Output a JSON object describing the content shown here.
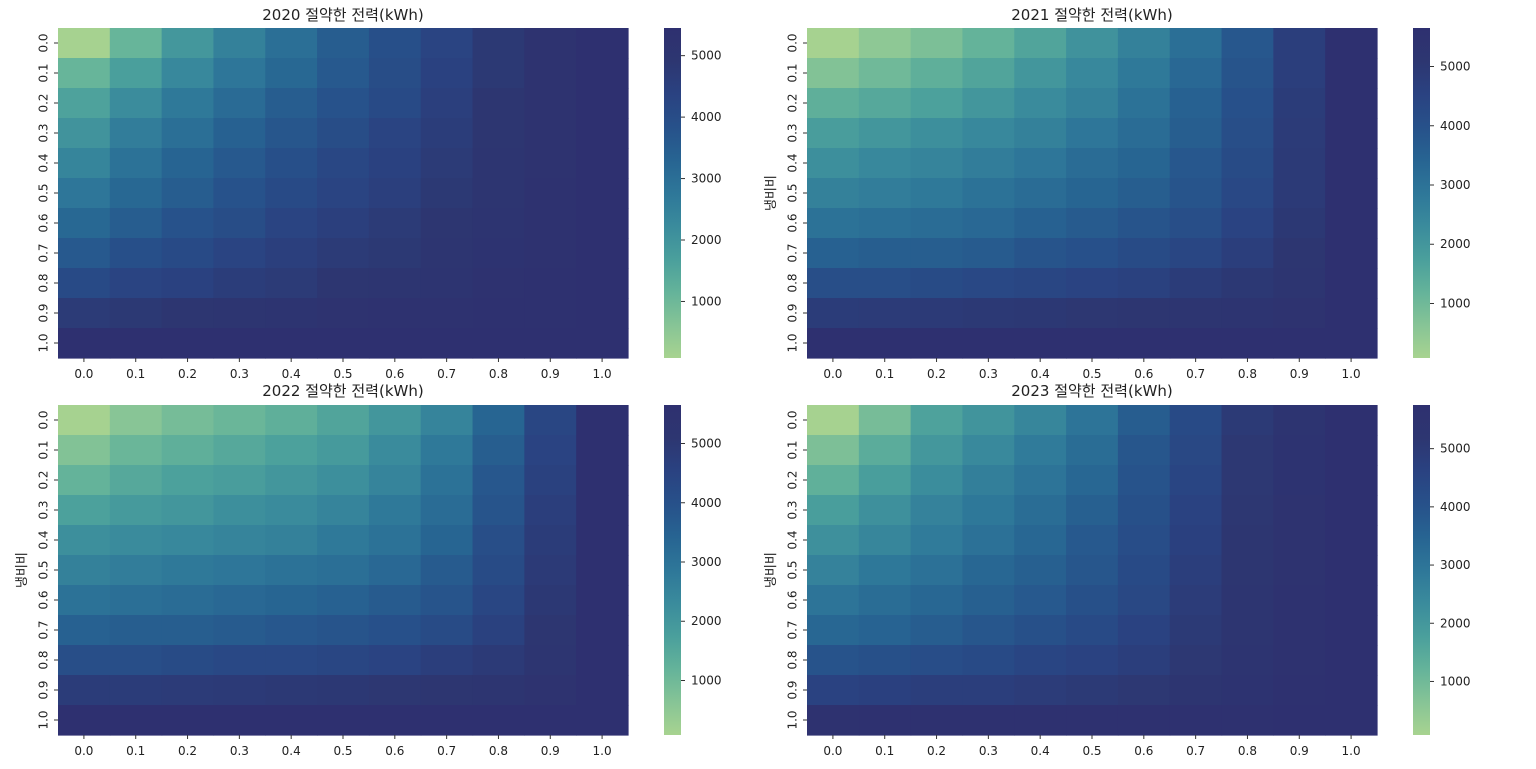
{
  "chart_data": [
    {
      "type": "heatmap",
      "title": "2020 절약한 전력(kWh)",
      "xlabel": "",
      "ylabel": "",
      "x": [
        "0.0",
        "0.1",
        "0.2",
        "0.3",
        "0.4",
        "0.5",
        "0.6",
        "0.7",
        "0.8",
        "0.9",
        "1.0"
      ],
      "y": [
        "0.0",
        "0.1",
        "0.2",
        "0.3",
        "0.4",
        "0.5",
        "0.6",
        "0.7",
        "0.8",
        "0.9",
        "1.0"
      ],
      "colorbar_ticks": [
        1000,
        2000,
        3000,
        4000,
        5000
      ],
      "value_range": [
        80,
        5450
      ],
      "values": [
        [
          100,
          1100,
          1900,
          2500,
          3000,
          3500,
          3900,
          4300,
          4800,
          5200,
          5450
        ],
        [
          1100,
          1700,
          2300,
          2800,
          3200,
          3600,
          4000,
          4400,
          4800,
          5200,
          5450
        ],
        [
          1600,
          2200,
          2700,
          3100,
          3500,
          3800,
          4100,
          4500,
          4900,
          5200,
          5450
        ],
        [
          2000,
          2600,
          3000,
          3400,
          3700,
          4000,
          4300,
          4600,
          4900,
          5200,
          5450
        ],
        [
          2400,
          2900,
          3300,
          3600,
          3900,
          4200,
          4400,
          4700,
          5000,
          5200,
          5450
        ],
        [
          2800,
          3200,
          3500,
          3800,
          4100,
          4300,
          4500,
          4800,
          5000,
          5250,
          5450
        ],
        [
          3200,
          3500,
          3800,
          4000,
          4300,
          4500,
          4700,
          4900,
          5100,
          5250,
          5450
        ],
        [
          3600,
          3900,
          4100,
          4300,
          4500,
          4700,
          4800,
          5000,
          5150,
          5300,
          5450
        ],
        [
          4100,
          4300,
          4400,
          4600,
          4700,
          4900,
          5000,
          5100,
          5250,
          5350,
          5450
        ],
        [
          4700,
          4800,
          4900,
          5000,
          5100,
          5200,
          5250,
          5300,
          5350,
          5400,
          5450
        ],
        [
          5450,
          5450,
          5450,
          5450,
          5450,
          5450,
          5450,
          5450,
          5450,
          5450,
          5450
        ]
      ]
    },
    {
      "type": "heatmap",
      "title": "2021 절약한 전력(kWh)",
      "xlabel": "",
      "ylabel": "냉비비",
      "x": [
        "0.0",
        "0.1",
        "0.2",
        "0.3",
        "0.4",
        "0.5",
        "0.6",
        "0.7",
        "0.8",
        "0.9",
        "1.0"
      ],
      "y": [
        "0.0",
        "0.1",
        "0.2",
        "0.3",
        "0.4",
        "0.5",
        "0.6",
        "0.7",
        "0.8",
        "0.9",
        "1.0"
      ],
      "colorbar_ticks": [
        1000,
        2000,
        3000,
        4000,
        5000
      ],
      "value_range": [
        80,
        5650
      ],
      "values": [
        [
          100,
          500,
          800,
          1200,
          1600,
          2100,
          2600,
          3100,
          3800,
          4700,
          5650
        ],
        [
          700,
          1000,
          1300,
          1600,
          2000,
          2400,
          2800,
          3300,
          3900,
          4700,
          5650
        ],
        [
          1300,
          1500,
          1700,
          2000,
          2300,
          2600,
          3000,
          3500,
          4000,
          4800,
          5650
        ],
        [
          1800,
          2000,
          2200,
          2400,
          2600,
          2900,
          3200,
          3600,
          4100,
          4850,
          5650
        ],
        [
          2200,
          2400,
          2500,
          2700,
          2900,
          3200,
          3400,
          3800,
          4200,
          4900,
          5650
        ],
        [
          2600,
          2700,
          2800,
          3000,
          3200,
          3400,
          3600,
          3900,
          4300,
          4900,
          5650
        ],
        [
          3000,
          3100,
          3200,
          3300,
          3500,
          3700,
          3900,
          4100,
          4500,
          5000,
          5650
        ],
        [
          3500,
          3600,
          3600,
          3700,
          3900,
          4000,
          4200,
          4400,
          4700,
          5100,
          5650
        ],
        [
          4100,
          4100,
          4200,
          4300,
          4400,
          4500,
          4600,
          4800,
          5000,
          5200,
          5650
        ],
        [
          4800,
          4850,
          4900,
          4950,
          5000,
          5050,
          5100,
          5200,
          5300,
          5400,
          5650
        ],
        [
          5650,
          5650,
          5650,
          5650,
          5650,
          5650,
          5650,
          5650,
          5650,
          5650,
          5650
        ]
      ]
    },
    {
      "type": "heatmap",
      "title": "2022 절약한 전력(kWh)",
      "xlabel": "",
      "ylabel": "냉비비",
      "x": [
        "0.0",
        "0.1",
        "0.2",
        "0.3",
        "0.4",
        "0.5",
        "0.6",
        "0.7",
        "0.8",
        "0.9",
        "1.0"
      ],
      "y": [
        "0.0",
        "0.1",
        "0.2",
        "0.3",
        "0.4",
        "0.5",
        "0.6",
        "0.7",
        "0.8",
        "0.9",
        "1.0"
      ],
      "colorbar_ticks": [
        1000,
        2000,
        3000,
        4000,
        5000
      ],
      "value_range": [
        80,
        5650
      ],
      "values": [
        [
          100,
          600,
          900,
          1100,
          1300,
          1600,
          2000,
          2500,
          3400,
          4400,
          5650
        ],
        [
          700,
          1100,
          1300,
          1500,
          1700,
          1900,
          2300,
          2800,
          3600,
          4500,
          5650
        ],
        [
          1200,
          1500,
          1700,
          1800,
          2000,
          2200,
          2500,
          3000,
          3800,
          4600,
          5650
        ],
        [
          1700,
          1900,
          2000,
          2200,
          2300,
          2500,
          2800,
          3200,
          3900,
          4700,
          5650
        ],
        [
          2200,
          2300,
          2400,
          2500,
          2600,
          2800,
          3000,
          3400,
          4100,
          4800,
          5650
        ],
        [
          2600,
          2700,
          2800,
          2900,
          3000,
          3100,
          3300,
          3700,
          4200,
          4900,
          5650
        ],
        [
          3000,
          3100,
          3200,
          3300,
          3400,
          3500,
          3700,
          3900,
          4400,
          5000,
          5650
        ],
        [
          3500,
          3600,
          3600,
          3700,
          3800,
          3900,
          4000,
          4200,
          4600,
          5100,
          5650
        ],
        [
          4100,
          4100,
          4200,
          4300,
          4300,
          4400,
          4500,
          4700,
          4900,
          5200,
          5650
        ],
        [
          4800,
          4800,
          4850,
          4900,
          4950,
          5000,
          5050,
          5100,
          5200,
          5400,
          5650
        ],
        [
          5650,
          5650,
          5650,
          5650,
          5650,
          5650,
          5650,
          5650,
          5650,
          5650,
          5650
        ]
      ]
    },
    {
      "type": "heatmap",
      "title": "2023 절약한 전력(kWh)",
      "xlabel": "",
      "ylabel": "냉비비",
      "x": [
        "0.0",
        "0.1",
        "0.2",
        "0.3",
        "0.4",
        "0.5",
        "0.6",
        "0.7",
        "0.8",
        "0.9",
        "1.0"
      ],
      "y": [
        "0.0",
        "0.1",
        "0.2",
        "0.3",
        "0.4",
        "0.5",
        "0.6",
        "0.7",
        "0.8",
        "0.9",
        "1.0"
      ],
      "colorbar_ticks": [
        1000,
        2000,
        3000,
        4000,
        5000
      ],
      "value_range": [
        80,
        5750
      ],
      "values": [
        [
          100,
          900,
          1700,
          2100,
          2500,
          3000,
          3700,
          4300,
          5000,
          5400,
          5750
        ],
        [
          800,
          1400,
          2000,
          2400,
          2800,
          3200,
          3900,
          4400,
          5100,
          5450,
          5750
        ],
        [
          1300,
          1800,
          2300,
          2700,
          3000,
          3400,
          4000,
          4500,
          5100,
          5450,
          5750
        ],
        [
          1800,
          2200,
          2600,
          2900,
          3200,
          3600,
          4100,
          4600,
          5150,
          5500,
          5750
        ],
        [
          2200,
          2500,
          2800,
          3100,
          3400,
          3800,
          4200,
          4700,
          5200,
          5500,
          5750
        ],
        [
          2600,
          2900,
          3100,
          3400,
          3600,
          3900,
          4300,
          4800,
          5200,
          5500,
          5750
        ],
        [
          3000,
          3200,
          3400,
          3600,
          3800,
          4100,
          4400,
          4900,
          5250,
          5550,
          5750
        ],
        [
          3400,
          3500,
          3700,
          3900,
          4100,
          4300,
          4600,
          5000,
          5300,
          5550,
          5750
        ],
        [
          4000,
          4100,
          4200,
          4300,
          4500,
          4600,
          4800,
          5100,
          5350,
          5600,
          5750
        ],
        [
          4600,
          4700,
          4800,
          4800,
          4900,
          5000,
          5100,
          5300,
          5450,
          5650,
          5750
        ],
        [
          5600,
          5650,
          5650,
          5650,
          5650,
          5650,
          5700,
          5700,
          5700,
          5750,
          5750
        ]
      ]
    }
  ],
  "colormap": [
    "#a7d390",
    "#86c496",
    "#64b39a",
    "#4a9f9c",
    "#3a8b9c",
    "#2e7799",
    "#276492",
    "#27518a",
    "#2a4281",
    "#2d3671",
    "#2e3070"
  ]
}
